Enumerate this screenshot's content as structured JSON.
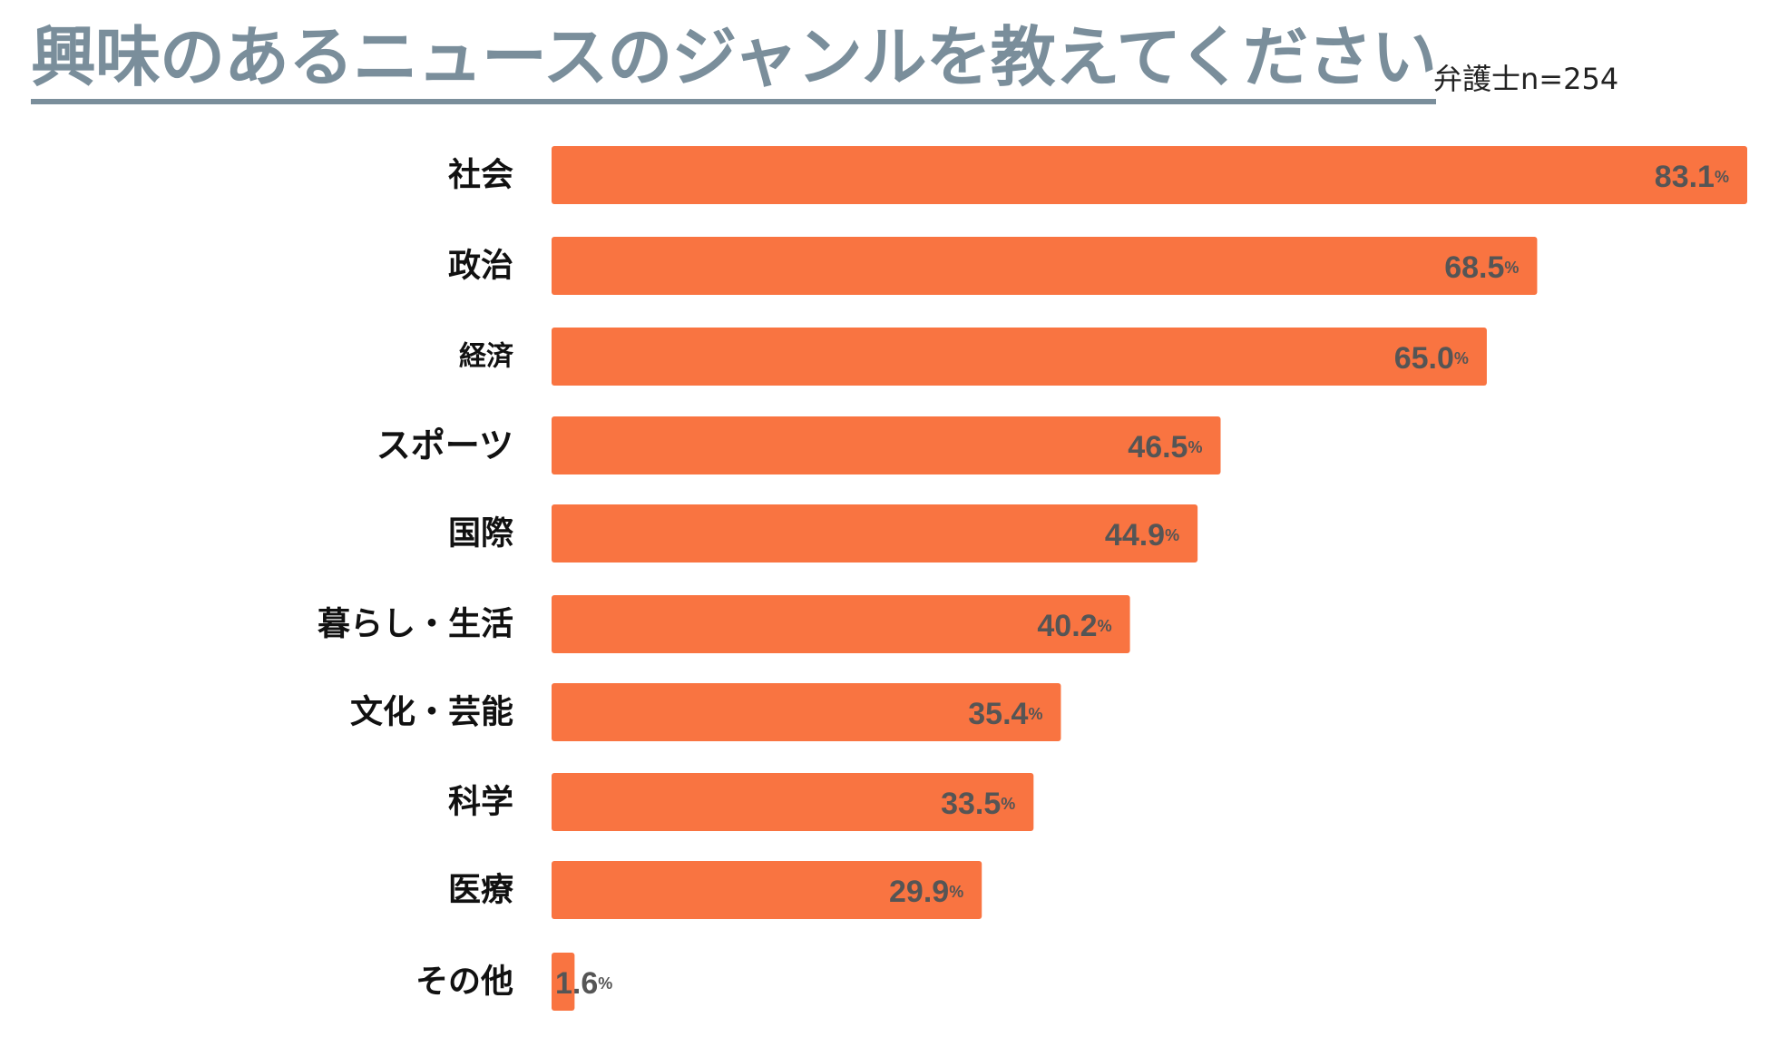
{
  "chart_data": {
    "type": "bar",
    "orientation": "horizontal",
    "title": "興味のあるニュースのジャンルを教えてください",
    "subtitle": "弁護士n=254",
    "categories": [
      "社会",
      "政治",
      "経済",
      "スポーツ",
      "国際",
      "暮らし・生活",
      "文化・芸能",
      "科学",
      "医療",
      "その他"
    ],
    "values": [
      83.1,
      68.5,
      65.0,
      46.5,
      44.9,
      40.2,
      35.4,
      33.5,
      29.9,
      1.6
    ],
    "value_labels": [
      "83.1",
      "68.5",
      "65.0",
      "46.5",
      "44.9",
      "40.2",
      "35.4",
      "33.5",
      "29.9",
      "1.6"
    ],
    "unit": "%",
    "xlim": [
      0,
      83.1
    ],
    "bar_color": "#f97441",
    "title_color": "#7a8e9b",
    "value_label_color": "#555555",
    "legend": "none",
    "grid": false
  }
}
